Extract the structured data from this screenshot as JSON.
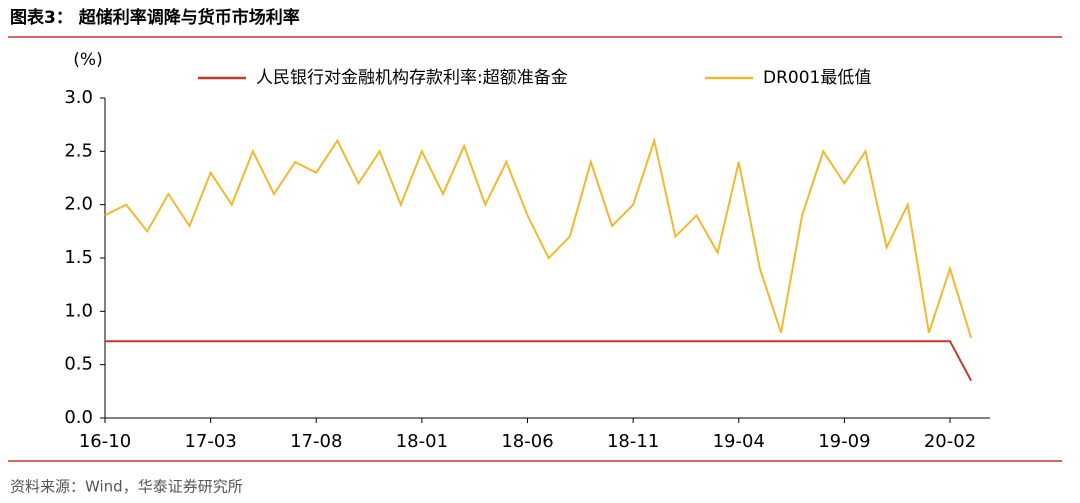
{
  "chart_data": {
    "type": "line",
    "title": "图表3： 超储利率调降与货币市场利率",
    "y_label": "(%)",
    "source": "资料来源：Wind，华泰证券研究所",
    "categories": [
      "16-10",
      null,
      null,
      null,
      null,
      "17-03",
      null,
      null,
      null,
      null,
      "17-08",
      null,
      null,
      null,
      null,
      "18-01",
      null,
      null,
      null,
      null,
      "18-06",
      null,
      null,
      null,
      null,
      "18-11",
      null,
      null,
      null,
      null,
      "19-04",
      null,
      null,
      null,
      null,
      "19-09",
      null,
      null,
      null,
      null,
      "20-02",
      null
    ],
    "series": [
      {
        "name": "人民银行对金融机构存款利率:超额准备金",
        "color": "#c0392b",
        "values": [
          0.72,
          0.72,
          0.72,
          0.72,
          0.72,
          0.72,
          0.72,
          0.72,
          0.72,
          0.72,
          0.72,
          0.72,
          0.72,
          0.72,
          0.72,
          0.72,
          0.72,
          0.72,
          0.72,
          0.72,
          0.72,
          0.72,
          0.72,
          0.72,
          0.72,
          0.72,
          0.72,
          0.72,
          0.72,
          0.72,
          0.72,
          0.72,
          0.72,
          0.72,
          0.72,
          0.72,
          0.72,
          0.72,
          0.72,
          0.72,
          0.72,
          0.35
        ]
      },
      {
        "name": "DR001最低值",
        "color": "#f0b92e",
        "values": [
          1.9,
          2.0,
          1.75,
          2.1,
          1.8,
          2.3,
          2.0,
          2.5,
          2.1,
          2.4,
          2.3,
          2.6,
          2.2,
          2.5,
          2.0,
          2.5,
          2.1,
          2.55,
          2.0,
          2.4,
          1.9,
          1.5,
          1.7,
          2.4,
          1.8,
          2.0,
          2.6,
          1.7,
          1.9,
          1.55,
          2.4,
          1.4,
          0.8,
          1.9,
          2.5,
          2.2,
          2.5,
          1.6,
          2.0,
          0.8,
          1.4,
          0.75
        ]
      }
    ],
    "ylim": [
      0,
      3
    ],
    "yticks": [
      {
        "value": 0,
        "label": "0.0"
      },
      {
        "value": 0.5,
        "label": "0.5"
      },
      {
        "value": 1,
        "label": "1.0"
      },
      {
        "value": 1.5,
        "label": "1.5"
      },
      {
        "value": 2,
        "label": "2.0"
      },
      {
        "value": 2.5,
        "label": "2.5"
      },
      {
        "value": 3,
        "label": "3.0"
      }
    ],
    "grid": false
  }
}
